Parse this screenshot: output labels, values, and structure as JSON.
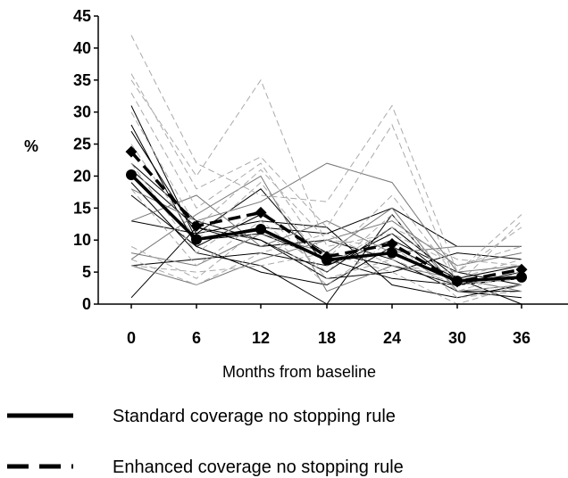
{
  "chart_data": {
    "type": "line",
    "title": "",
    "xlabel": "Months from baseline",
    "ylabel": "%",
    "x": [
      0,
      6,
      12,
      18,
      24,
      30,
      36
    ],
    "yticks": [
      0,
      5,
      10,
      15,
      20,
      25,
      30,
      35,
      40,
      45
    ],
    "ylim": [
      0,
      45
    ],
    "grid": false,
    "legend_position": "bottom",
    "legend": [
      {
        "label": "Standard coverage no stopping rule",
        "style": "solid",
        "color": "#000000"
      },
      {
        "label": "Enhanced coverage no stopping rule",
        "style": "dashed",
        "color": "#000000"
      }
    ],
    "series": [
      {
        "group": "standard",
        "role": "mean",
        "values": [
          20.2,
          10.1,
          11.7,
          6.9,
          8.0,
          3.6,
          4.2
        ]
      },
      {
        "group": "enhanced",
        "role": "mean",
        "values": [
          23.8,
          12.2,
          14.3,
          7.4,
          9.4,
          3.5,
          5.4
        ]
      },
      {
        "group": "standard",
        "role": "trial",
        "color": "#000000",
        "values": [
          31,
          10,
          12,
          11,
          15,
          9,
          9
        ]
      },
      {
        "group": "standard",
        "role": "trial",
        "color": "#000000",
        "values": [
          28,
          9,
          14,
          8,
          6,
          3,
          4
        ]
      },
      {
        "group": "standard",
        "role": "trial",
        "color": "#000000",
        "values": [
          27,
          11,
          18,
          6,
          10,
          5,
          3
        ]
      },
      {
        "group": "standard",
        "role": "trial",
        "color": "#000000",
        "values": [
          22,
          13,
          10,
          5,
          12,
          4,
          6
        ]
      },
      {
        "group": "standard",
        "role": "trial",
        "color": "#000000",
        "values": [
          19,
          8,
          6,
          0,
          14,
          2,
          2
        ]
      },
      {
        "group": "standard",
        "role": "trial",
        "color": "#000000",
        "values": [
          20,
          10,
          11,
          7,
          4,
          3,
          5
        ]
      },
      {
        "group": "standard",
        "role": "trial",
        "color": "#000000",
        "values": [
          21,
          12,
          9,
          10,
          7,
          2,
          1
        ]
      },
      {
        "group": "standard",
        "role": "trial",
        "color": "#000000",
        "values": [
          17,
          9,
          5,
          3,
          9,
          4,
          0
        ]
      },
      {
        "group": "standard",
        "role": "trial",
        "color": "#000000",
        "values": [
          13,
          11,
          13,
          12,
          3,
          1,
          3
        ]
      },
      {
        "group": "standard",
        "role": "trial",
        "color": "#000000",
        "values": [
          6,
          7,
          8,
          6,
          11,
          3,
          4
        ]
      },
      {
        "group": "standard",
        "role": "trial",
        "color": "#000000",
        "values": [
          1,
          12,
          10,
          4,
          5,
          8,
          7
        ]
      },
      {
        "group": "standard",
        "role": "trial",
        "color": "#777777",
        "values": [
          18,
          13,
          16,
          22,
          19,
          5,
          6
        ]
      },
      {
        "group": "standard",
        "role": "trial",
        "color": "#777777",
        "values": [
          13,
          17,
          9,
          13,
          8,
          9,
          9
        ]
      },
      {
        "group": "standard",
        "role": "trial",
        "color": "#777777",
        "values": [
          8,
          6,
          11,
          8,
          15,
          2,
          3
        ]
      },
      {
        "group": "standard",
        "role": "trial",
        "color": "#777777",
        "values": [
          7,
          14,
          20,
          2,
          6,
          4,
          2
        ]
      },
      {
        "group": "standard",
        "role": "trial",
        "color": "#777777",
        "values": [
          6,
          3,
          7,
          10,
          13,
          6,
          8
        ]
      },
      {
        "group": "enhanced",
        "role": "trial",
        "color": "#aaaaaa",
        "values": [
          42,
          22,
          17,
          16,
          31,
          5,
          14
        ]
      },
      {
        "group": "enhanced",
        "role": "trial",
        "color": "#aaaaaa",
        "values": [
          36,
          18,
          23,
          12,
          28,
          3,
          13
        ]
      },
      {
        "group": "enhanced",
        "role": "trial",
        "color": "#aaaaaa",
        "values": [
          35,
          20,
          35,
          9,
          11,
          6,
          9
        ]
      },
      {
        "group": "enhanced",
        "role": "trial",
        "color": "#aaaaaa",
        "values": [
          33,
          15,
          22,
          7,
          17,
          4,
          7
        ]
      },
      {
        "group": "enhanced",
        "role": "trial",
        "color": "#aaaaaa",
        "values": [
          30,
          12,
          21,
          10,
          9,
          2,
          5
        ]
      },
      {
        "group": "enhanced",
        "role": "trial",
        "color": "#aaaaaa",
        "values": [
          25,
          10,
          19,
          6,
          12,
          7,
          6
        ]
      },
      {
        "group": "enhanced",
        "role": "trial",
        "color": "#aaaaaa",
        "values": [
          22,
          8,
          15,
          4,
          7,
          3,
          4
        ]
      },
      {
        "group": "enhanced",
        "role": "trial",
        "color": "#aaaaaa",
        "values": [
          18,
          6,
          13,
          5,
          14,
          2,
          3
        ]
      },
      {
        "group": "enhanced",
        "role": "trial",
        "color": "#aaaaaa",
        "values": [
          9,
          4,
          12,
          3,
          10,
          1,
          2
        ]
      },
      {
        "group": "enhanced",
        "role": "trial",
        "color": "#aaaaaa",
        "values": [
          7,
          3,
          8,
          11,
          6,
          5,
          12
        ]
      },
      {
        "group": "enhanced",
        "role": "trial",
        "color": "#aaaaaa",
        "values": [
          6,
          5,
          6,
          8,
          5,
          0,
          3
        ]
      }
    ]
  }
}
